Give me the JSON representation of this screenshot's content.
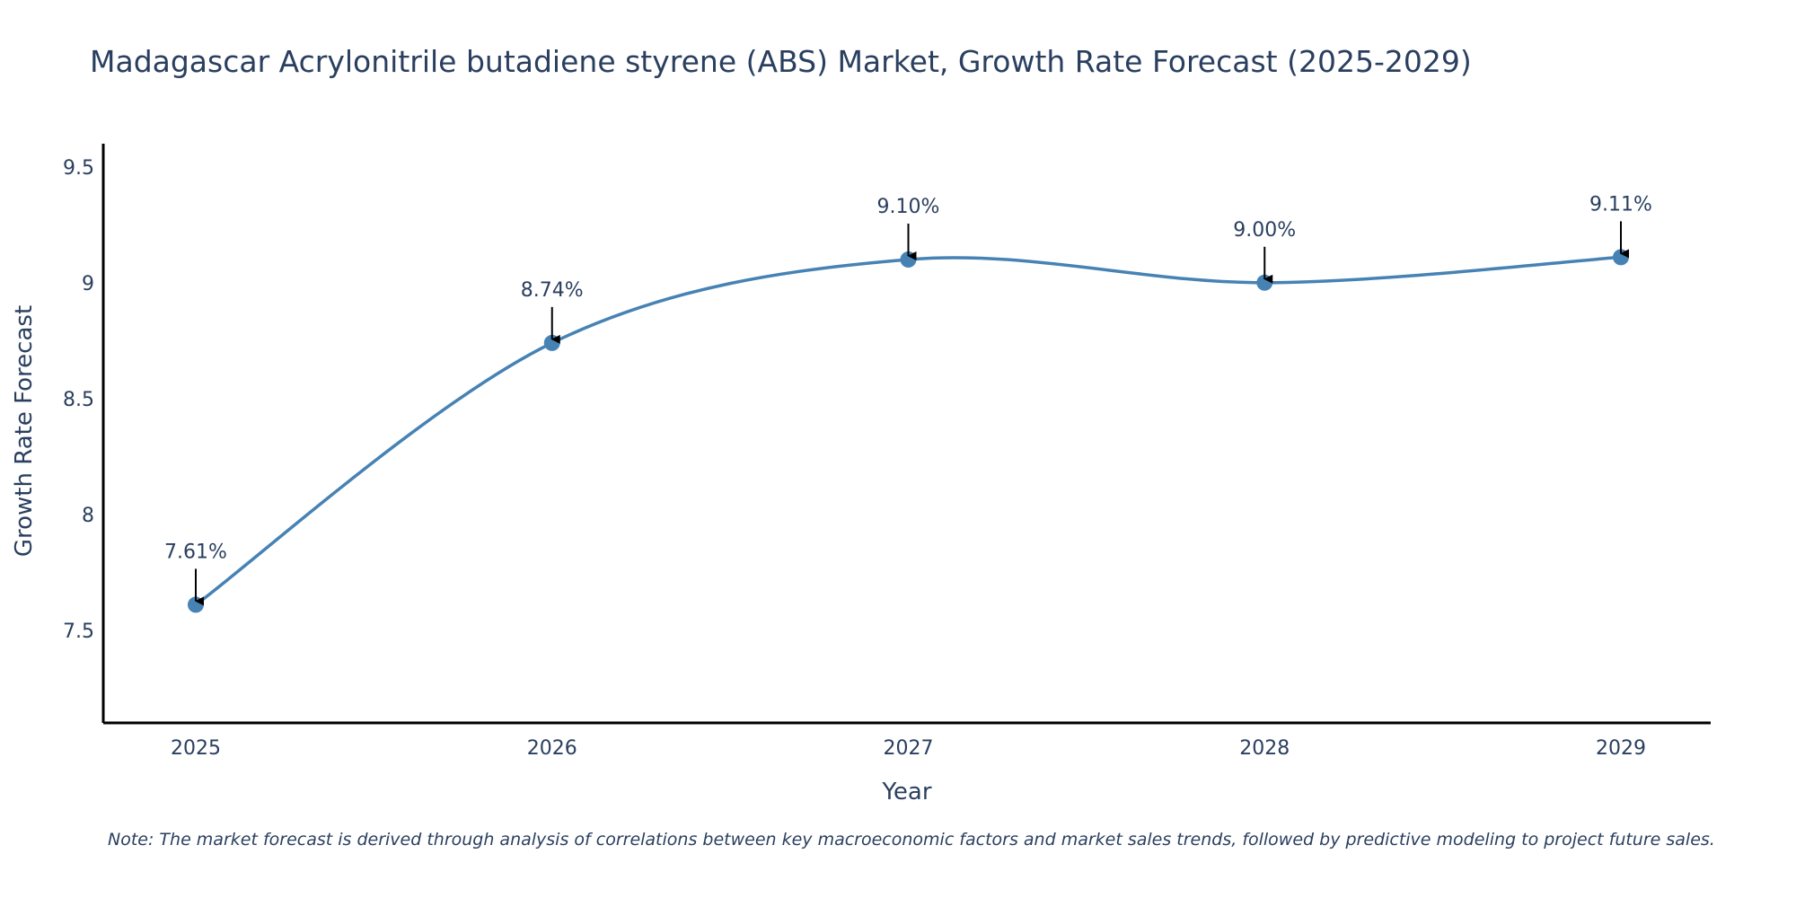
{
  "chart_data": {
    "type": "line",
    "title": "Madagascar Acrylonitrile butadiene styrene (ABS) Market, Growth Rate Forecast (2025-2029)",
    "xlabel": "Year",
    "ylabel": "Growth Rate Forecast",
    "categories": [
      "2025",
      "2026",
      "2027",
      "2028",
      "2029"
    ],
    "series": [
      {
        "name": "Growth Rate Forecast",
        "values": [
          7.61,
          8.74,
          9.1,
          9.0,
          9.11
        ],
        "labels": [
          "7.61%",
          "8.74%",
          "9.10%",
          "9.00%",
          "9.11%"
        ],
        "color": "#4682b4"
      }
    ],
    "ylim": [
      7.1,
      9.6
    ],
    "yticks": [
      7.5,
      8,
      8.5,
      9,
      9.5
    ],
    "ytick_labels": [
      "7.5",
      "8",
      "8.5",
      "9",
      "9.5"
    ],
    "grid": false,
    "note": "Note: The market forecast is derived through analysis of correlations between key macroeconomic factors and market sales trends, followed by predictive modeling to project future sales."
  }
}
